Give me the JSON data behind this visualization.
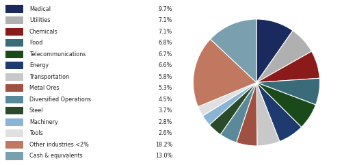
{
  "labels": [
    "Medical",
    "Utilities",
    "Chemicals",
    "Food",
    "Telecommunications",
    "Energy",
    "Transportation",
    "Metal Ores",
    "Diversified Operations",
    "Steel",
    "Machinery",
    "Tools",
    "Other industries <2%",
    "Cash & equivalents"
  ],
  "values": [
    9.7,
    7.1,
    7.1,
    6.8,
    6.7,
    6.6,
    5.8,
    5.3,
    4.5,
    3.7,
    2.8,
    2.6,
    18.2,
    13.0
  ],
  "colors": [
    "#1a2a5e",
    "#b0b0b0",
    "#8b1a1a",
    "#3a6b78",
    "#1a4a1a",
    "#1e3a6e",
    "#c8c8c8",
    "#a05040",
    "#5a8a9a",
    "#2a4a2a",
    "#8ab4d4",
    "#e0e0e0",
    "#c07860",
    "#7aa0b0"
  ],
  "pct_labels": [
    "9.7%",
    "7.1%",
    "7.1%",
    "6.8%",
    "6.7%",
    "6.6%",
    "5.8%",
    "5.3%",
    "4.5%",
    "3.7%",
    "2.8%",
    "2.6%",
    "18.2%",
    "13.0%"
  ],
  "legend_label_color": "#222222",
  "background_color": "#ffffff",
  "figsize": [
    5.0,
    2.41
  ],
  "dpi": 100
}
